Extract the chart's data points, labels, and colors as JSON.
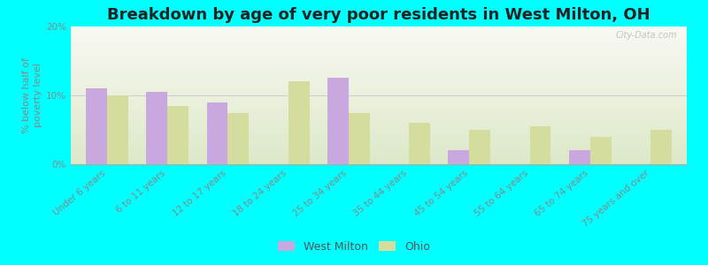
{
  "title": "Breakdown by age of very poor residents in West Milton, OH",
  "ylabel": "% below half of\npoverty level",
  "categories": [
    "Under 6 years",
    "6 to 11 years",
    "12 to 17 years",
    "18 to 24 years",
    "25 to 34 years",
    "35 to 44 years",
    "45 to 54 years",
    "55 to 64 years",
    "65 to 74 years",
    "75 years and over"
  ],
  "west_milton": [
    11.0,
    10.5,
    9.0,
    0.0,
    12.5,
    0.0,
    2.0,
    0.0,
    2.0,
    0.0
  ],
  "ohio": [
    10.0,
    8.5,
    7.5,
    12.0,
    7.5,
    6.0,
    5.0,
    5.5,
    4.0,
    5.0
  ],
  "wm_color": "#c9a8e0",
  "ohio_color": "#d4dd9e",
  "background_color": "#00ffff",
  "grad_top": "#f8f8f2",
  "grad_bottom": "#dce8c8",
  "ylim": [
    0,
    20
  ],
  "yticks": [
    0,
    10,
    20
  ],
  "ytick_labels": [
    "0%",
    "10%",
    "20%"
  ],
  "bar_width": 0.35,
  "title_fontsize": 13,
  "axis_fontsize": 8,
  "tick_fontsize": 7.5,
  "legend_fontsize": 9
}
